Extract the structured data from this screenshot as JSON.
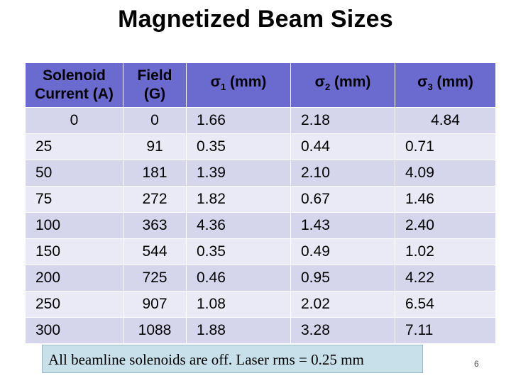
{
  "title": "Magnetized Beam Sizes",
  "table": {
    "headers": {
      "current": [
        "Solenoid",
        "Current (A)"
      ],
      "field": [
        "Field",
        "(G)"
      ],
      "sigma1": {
        "sym": "σ",
        "sub": "1",
        "unit": " (mm)"
      },
      "sigma2": {
        "sym": "σ",
        "sub": "2",
        "unit": " (mm)"
      },
      "sigma3": {
        "sym": "σ",
        "sub": "3",
        "unit": " (mm)"
      }
    },
    "rows": [
      [
        "25",
        "91",
        "0.35",
        "0.44",
        "0.71"
      ],
      [
        "50",
        "181",
        "1.39",
        "2.10",
        "4.09"
      ],
      [
        "75",
        "272",
        "1.82",
        "0.67",
        "1.46"
      ],
      [
        "100",
        "363",
        "4.36",
        "1.43",
        "2.40"
      ],
      [
        "150",
        "544",
        "0.35",
        "0.49",
        "1.02"
      ],
      [
        "200",
        "725",
        "0.46",
        "0.95",
        "4.22"
      ],
      [
        "250",
        "907",
        "1.08",
        "2.02",
        "6.54"
      ],
      [
        "300",
        "1088",
        "1.88",
        "3.28",
        "7.11"
      ]
    ],
    "zero_row": [
      "0",
      "0",
      "1.66",
      "2.18",
      "4.84"
    ]
  },
  "note": "All beamline solenoids are off. Laser rms = 0.25 mm",
  "page_number": "6",
  "colors": {
    "header_bg": "#6b6bcf",
    "row_odd": "#d5d5ec",
    "row_even": "#eaeaf6",
    "note_bg": "#c7e0ea"
  }
}
